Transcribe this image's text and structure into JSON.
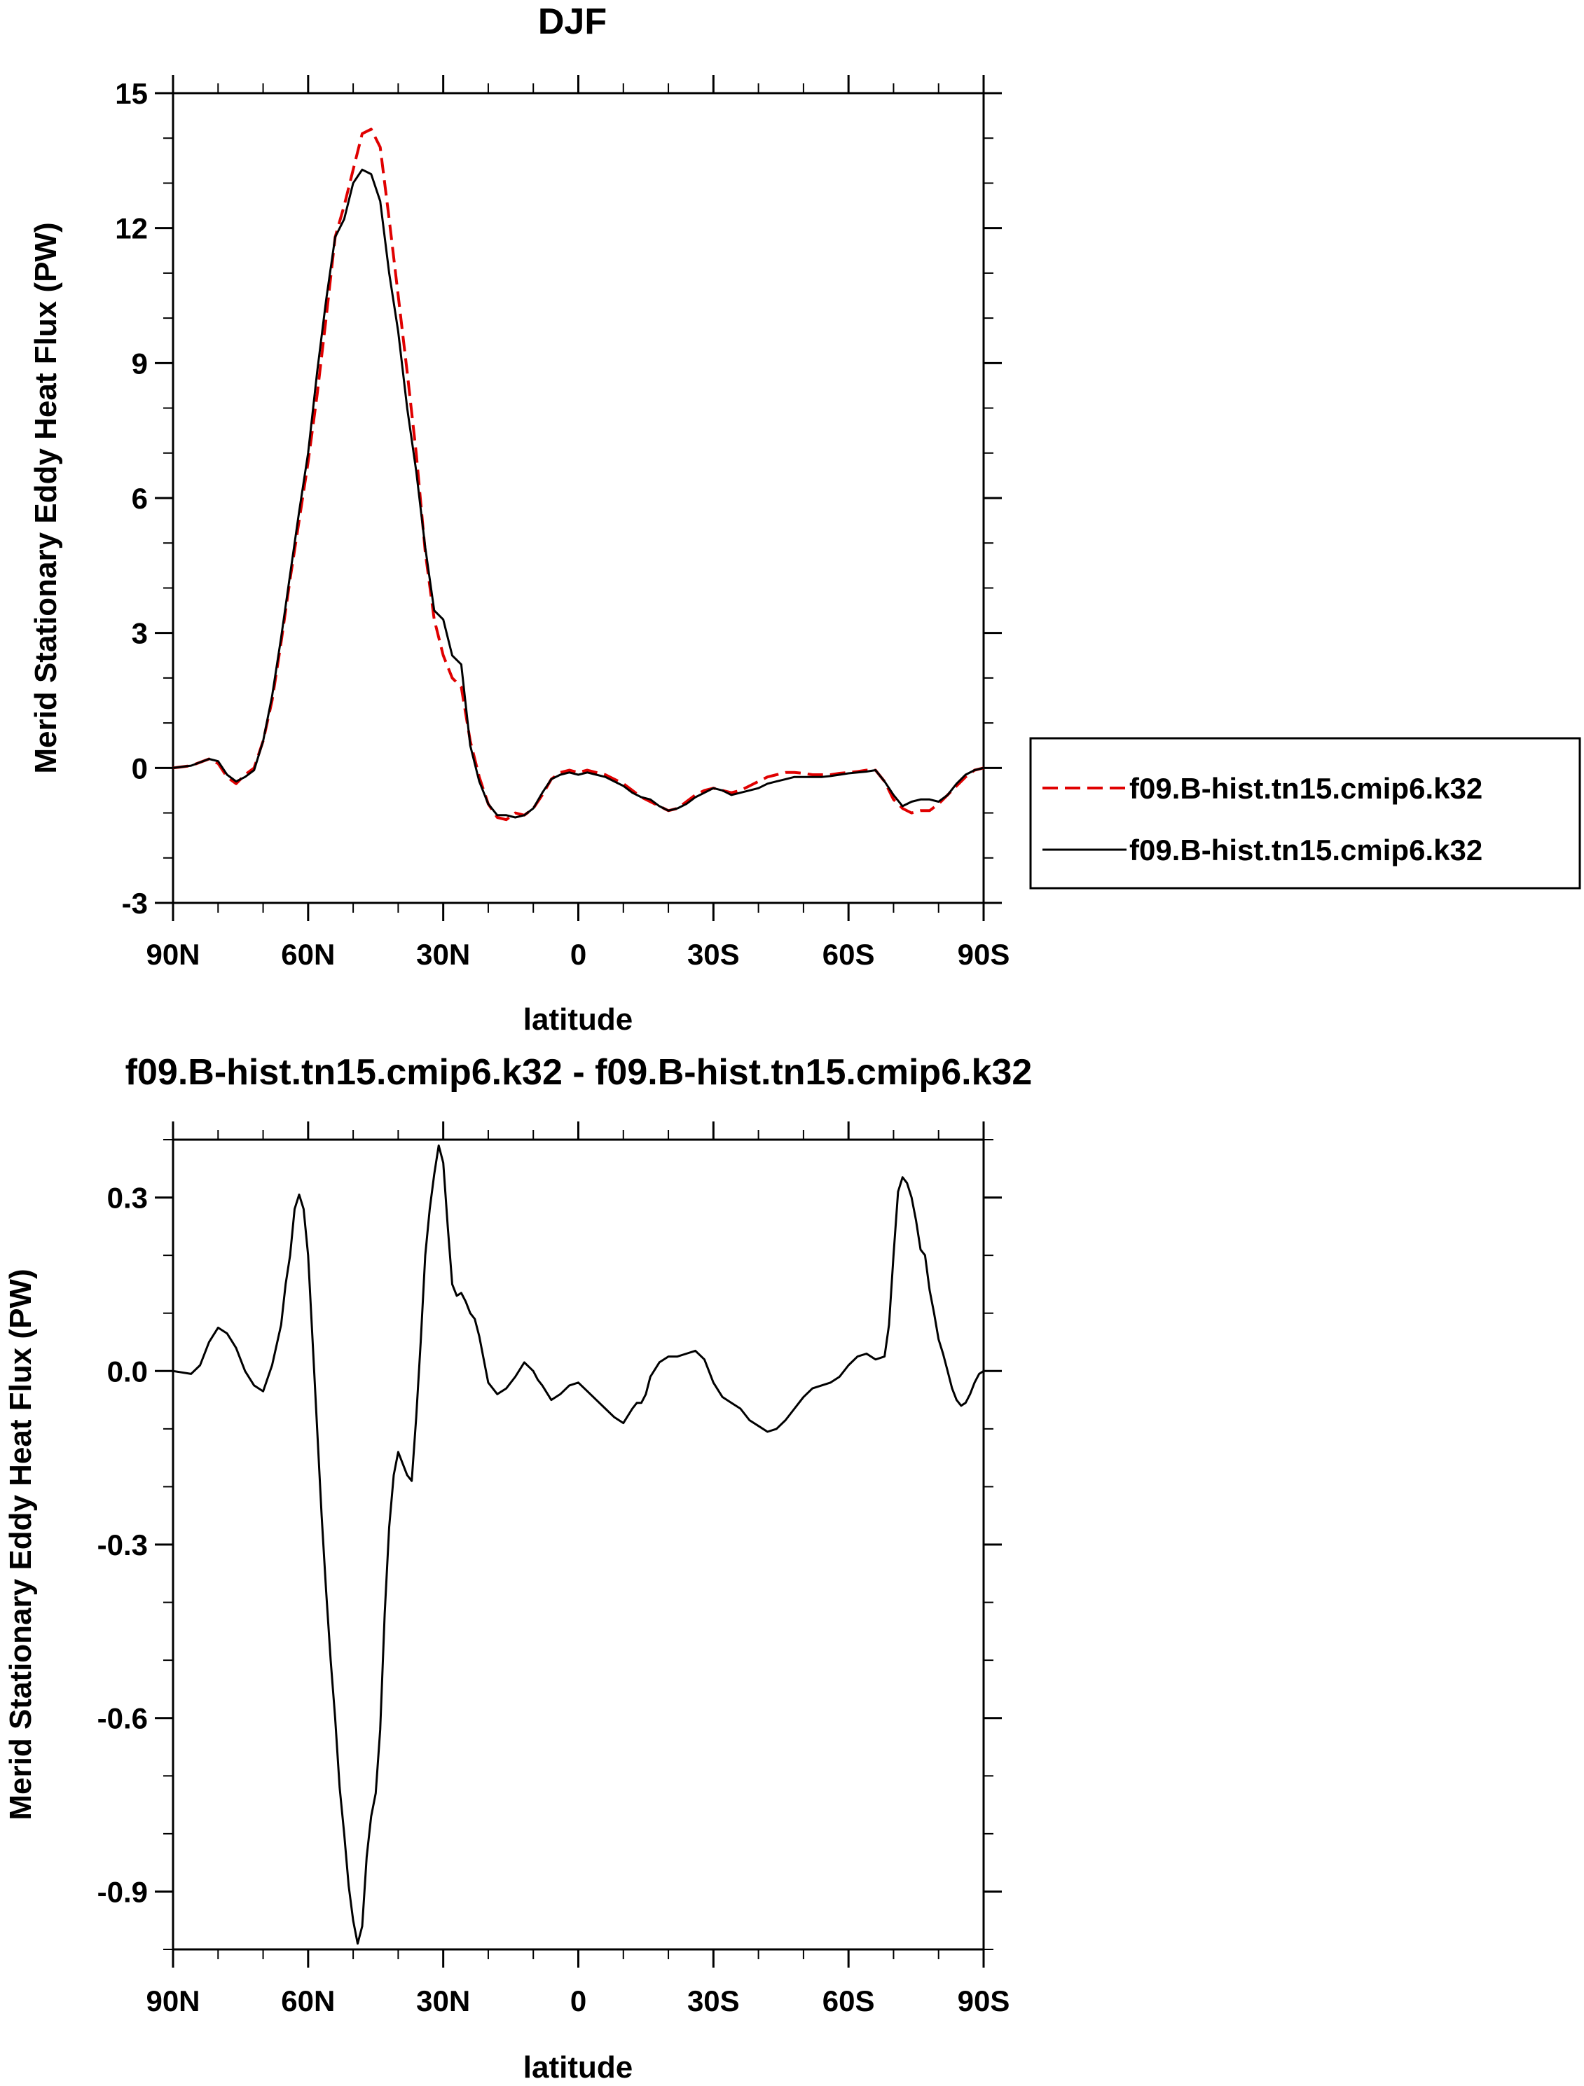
{
  "chart_data": [
    {
      "type": "line",
      "title": "DJF",
      "xlabel": "latitude",
      "ylabel": "Merid Stationary Eddy Heat Flux (PW)",
      "xlim": [
        90,
        -90
      ],
      "ylim": [
        -3,
        15
      ],
      "yticks": [
        -3,
        0,
        3,
        6,
        9,
        12,
        15
      ],
      "ytick_labels": [
        "-3",
        "0",
        "3",
        "6",
        "9",
        "12",
        "15"
      ],
      "xticks": [
        90,
        60,
        30,
        0,
        -30,
        -60,
        -90
      ],
      "xtick_labels": [
        "90N",
        "60N",
        "30N",
        "0",
        "30S",
        "60S",
        "90S"
      ],
      "grid": false,
      "legend_position": "right",
      "series": [
        {
          "name": "f09.B-hist.tn15.cmip6.k32",
          "color": "#e00000",
          "dash": "dashed",
          "x": [
            90,
            86,
            82,
            80,
            78,
            76,
            74,
            72,
            70,
            68,
            66,
            64,
            62,
            60,
            58,
            56,
            54,
            52,
            50,
            48,
            46,
            44,
            42,
            40,
            38,
            36,
            34,
            32,
            30,
            28,
            26,
            24,
            22,
            20,
            18,
            16,
            14,
            12,
            10,
            8,
            6,
            4,
            2,
            0,
            -2,
            -4,
            -6,
            -8,
            -10,
            -12,
            -14,
            -16,
            -18,
            -20,
            -22,
            -24,
            -26,
            -28,
            -30,
            -32,
            -34,
            -36,
            -38,
            -40,
            -42,
            -44,
            -46,
            -48,
            -50,
            -52,
            -54,
            -56,
            -58,
            -60,
            -62,
            -64,
            -66,
            -68,
            -70,
            -72,
            -74,
            -76,
            -78,
            -80,
            -82,
            -84,
            -86,
            -88,
            -90
          ],
          "y": [
            0.0,
            0.05,
            0.2,
            0.1,
            -0.2,
            -0.35,
            -0.15,
            0.0,
            0.6,
            1.5,
            2.8,
            4.2,
            5.5,
            6.8,
            8.3,
            10.0,
            11.8,
            12.5,
            13.3,
            14.1,
            14.2,
            13.8,
            12.2,
            10.5,
            8.8,
            7.0,
            4.8,
            3.3,
            2.5,
            2.0,
            1.8,
            0.6,
            -0.2,
            -0.8,
            -1.1,
            -1.15,
            -1.0,
            -1.05,
            -0.9,
            -0.6,
            -0.25,
            -0.1,
            -0.05,
            -0.1,
            -0.05,
            -0.1,
            -0.15,
            -0.25,
            -0.35,
            -0.5,
            -0.65,
            -0.75,
            -0.85,
            -0.95,
            -0.9,
            -0.75,
            -0.6,
            -0.5,
            -0.45,
            -0.5,
            -0.55,
            -0.5,
            -0.4,
            -0.3,
            -0.2,
            -0.15,
            -0.1,
            -0.1,
            -0.12,
            -0.15,
            -0.15,
            -0.15,
            -0.12,
            -0.1,
            -0.08,
            -0.05,
            -0.05,
            -0.3,
            -0.7,
            -0.9,
            -1.0,
            -0.95,
            -0.95,
            -0.8,
            -0.6,
            -0.4,
            -0.2,
            -0.05,
            0.0
          ]
        },
        {
          "name": "f09.B-hist.tn15.cmip6.k32",
          "color": "#000000",
          "dash": "solid",
          "x": [
            90,
            86,
            82,
            80,
            78,
            76,
            74,
            72,
            70,
            68,
            66,
            64,
            62,
            60,
            58,
            56,
            54,
            52,
            50,
            48,
            46,
            44,
            42,
            40,
            38,
            36,
            34,
            32,
            30,
            28,
            26,
            24,
            22,
            20,
            18,
            16,
            14,
            12,
            10,
            8,
            6,
            4,
            2,
            0,
            -2,
            -4,
            -6,
            -8,
            -10,
            -12,
            -14,
            -16,
            -18,
            -20,
            -22,
            -24,
            -26,
            -28,
            -30,
            -32,
            -34,
            -36,
            -38,
            -40,
            -42,
            -44,
            -46,
            -48,
            -50,
            -52,
            -54,
            -56,
            -58,
            -60,
            -62,
            -64,
            -66,
            -68,
            -70,
            -72,
            -74,
            -76,
            -78,
            -80,
            -82,
            -84,
            -86,
            -88,
            -90
          ],
          "y": [
            0.0,
            0.05,
            0.2,
            0.15,
            -0.15,
            -0.3,
            -0.2,
            -0.05,
            0.6,
            1.6,
            2.9,
            4.3,
            5.7,
            7.0,
            8.8,
            10.4,
            11.8,
            12.2,
            13.0,
            13.3,
            13.2,
            12.6,
            11.0,
            9.7,
            8.0,
            6.6,
            4.9,
            3.5,
            3.3,
            2.5,
            2.3,
            0.5,
            -0.3,
            -0.8,
            -1.05,
            -1.05,
            -1.1,
            -1.05,
            -0.9,
            -0.55,
            -0.25,
            -0.15,
            -0.1,
            -0.15,
            -0.1,
            -0.15,
            -0.2,
            -0.3,
            -0.4,
            -0.55,
            -0.65,
            -0.7,
            -0.85,
            -0.95,
            -0.9,
            -0.8,
            -0.65,
            -0.55,
            -0.45,
            -0.5,
            -0.6,
            -0.55,
            -0.5,
            -0.45,
            -0.35,
            -0.3,
            -0.25,
            -0.2,
            -0.2,
            -0.2,
            -0.2,
            -0.18,
            -0.15,
            -0.12,
            -0.1,
            -0.08,
            -0.05,
            -0.3,
            -0.6,
            -0.85,
            -0.75,
            -0.7,
            -0.7,
            -0.75,
            -0.6,
            -0.35,
            -0.15,
            -0.05,
            0.0
          ]
        }
      ]
    },
    {
      "type": "line",
      "title": "f09.B-hist.tn15.cmip6.k32 - f09.B-hist.tn15.cmip6.k32",
      "xlabel": "latitude",
      "ylabel": "Merid Stationary Eddy Heat Flux (PW)",
      "xlim": [
        90,
        -90
      ],
      "ylim": [
        -1.0,
        0.4
      ],
      "yticks": [
        -0.9,
        -0.6,
        -0.3,
        0.0,
        0.3
      ],
      "ytick_labels": [
        "-0.9",
        "-0.6",
        "-0.3",
        "0.0",
        "0.3"
      ],
      "xticks": [
        90,
        60,
        30,
        0,
        -30,
        -60,
        -90
      ],
      "xtick_labels": [
        "90N",
        "60N",
        "30N",
        "0",
        "30S",
        "60S",
        "90S"
      ],
      "grid": false,
      "series": [
        {
          "color": "#000000",
          "dash": "solid",
          "x": [
            90,
            86,
            84,
            82,
            80,
            78,
            76,
            74,
            72,
            70,
            68,
            66,
            65,
            64,
            63,
            62,
            61,
            60,
            59,
            58,
            57,
            56,
            55,
            54,
            53,
            52,
            51,
            50,
            49,
            48,
            47,
            46,
            45,
            44,
            43,
            42,
            41,
            40,
            39,
            38,
            37,
            36,
            35,
            34,
            33,
            32,
            31,
            30,
            29,
            28,
            27,
            26,
            25,
            24,
            23,
            22,
            21,
            20,
            18,
            16,
            14,
            12,
            10,
            9,
            8,
            6,
            4,
            2,
            0,
            -2,
            -4,
            -6,
            -8,
            -10,
            -12,
            -13,
            -14,
            -15,
            -16,
            -18,
            -20,
            -22,
            -24,
            -26,
            -28,
            -30,
            -32,
            -34,
            -36,
            -38,
            -40,
            -42,
            -44,
            -46,
            -48,
            -50,
            -52,
            -54,
            -56,
            -58,
            -60,
            -62,
            -64,
            -66,
            -68,
            -69,
            -70,
            -71,
            -72,
            -73,
            -74,
            -75,
            -76,
            -77,
            -78,
            -79,
            -80,
            -81,
            -82,
            -83,
            -84,
            -85,
            -86,
            -87,
            -88,
            -89,
            -90
          ],
          "y": [
            0.0,
            -0.005,
            0.01,
            0.05,
            0.075,
            0.065,
            0.04,
            0.0,
            -0.025,
            -0.035,
            0.01,
            0.08,
            0.15,
            0.2,
            0.28,
            0.305,
            0.28,
            0.2,
            0.05,
            -0.1,
            -0.25,
            -0.38,
            -0.5,
            -0.6,
            -0.72,
            -0.8,
            -0.89,
            -0.95,
            -0.99,
            -0.96,
            -0.84,
            -0.77,
            -0.73,
            -0.62,
            -0.42,
            -0.27,
            -0.18,
            -0.14,
            -0.16,
            -0.18,
            -0.19,
            -0.08,
            0.05,
            0.2,
            0.28,
            0.34,
            0.39,
            0.36,
            0.25,
            0.15,
            0.13,
            0.135,
            0.12,
            0.1,
            0.09,
            0.06,
            0.02,
            -0.02,
            -0.04,
            -0.03,
            -0.01,
            0.015,
            0.0,
            -0.015,
            -0.025,
            -0.05,
            -0.04,
            -0.025,
            -0.02,
            -0.035,
            -0.05,
            -0.065,
            -0.08,
            -0.09,
            -0.065,
            -0.055,
            -0.055,
            -0.04,
            -0.01,
            0.015,
            0.025,
            0.025,
            0.03,
            0.035,
            0.02,
            -0.02,
            -0.045,
            -0.055,
            -0.065,
            -0.085,
            -0.095,
            -0.105,
            -0.1,
            -0.085,
            -0.065,
            -0.045,
            -0.03,
            -0.025,
            -0.02,
            -0.01,
            0.01,
            0.025,
            0.03,
            0.02,
            0.025,
            0.08,
            0.2,
            0.31,
            0.335,
            0.325,
            0.3,
            0.26,
            0.21,
            0.2,
            0.14,
            0.1,
            0.055,
            0.03,
            0.0,
            -0.03,
            -0.05,
            -0.06,
            -0.055,
            -0.04,
            -0.02,
            -0.005,
            0.0
          ]
        }
      ]
    }
  ],
  "legend": {
    "entries": [
      "f09.B-hist.tn15.cmip6.k32",
      "f09.B-hist.tn15.cmip6.k32"
    ]
  }
}
